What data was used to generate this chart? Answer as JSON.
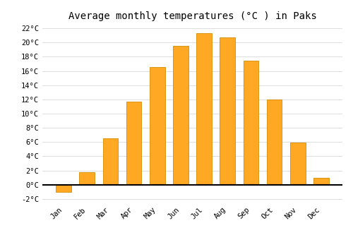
{
  "title": "Average monthly temperatures (°C ) in Paks",
  "months": [
    "Jan",
    "Feb",
    "Mar",
    "Apr",
    "May",
    "Jun",
    "Jul",
    "Aug",
    "Sep",
    "Oct",
    "Nov",
    "Dec"
  ],
  "values": [
    -1.0,
    1.8,
    6.5,
    11.7,
    16.5,
    19.5,
    21.3,
    20.7,
    17.4,
    12.0,
    5.9,
    1.0
  ],
  "bar_color": "#FFA824",
  "bar_edge_color": "#D48A00",
  "background_color": "#FFFFFF",
  "grid_color": "#DDDDDD",
  "ylim": [
    -2.5,
    22.5
  ],
  "yticks": [
    -2,
    0,
    2,
    4,
    6,
    8,
    10,
    12,
    14,
    16,
    18,
    20,
    22
  ],
  "ytick_labels": [
    "-2°C",
    "0°C",
    "2°C",
    "4°C",
    "6°C",
    "8°C",
    "10°C",
    "12°C",
    "14°C",
    "16°C",
    "18°C",
    "20°C",
    "22°C"
  ],
  "zero_line_color": "#000000",
  "title_fontsize": 10,
  "tick_fontsize": 7.5,
  "bar_width": 0.65
}
